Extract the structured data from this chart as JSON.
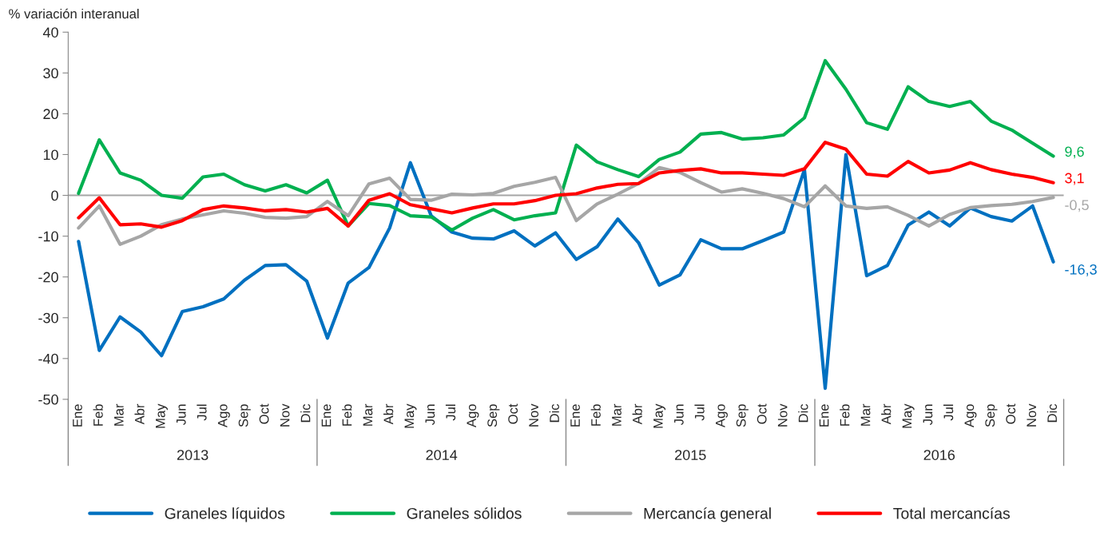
{
  "chart_data": {
    "type": "line",
    "ylabel": "% variación interanual",
    "categories": [
      "Ene",
      "Feb",
      "Mar",
      "Abr",
      "May",
      "Jun",
      "Jul",
      "Ago",
      "Sep",
      "Oct",
      "Nov",
      "Dic",
      "Ene",
      "Feb",
      "Mar",
      "Abr",
      "May",
      "Jun",
      "Jul",
      "Ago",
      "Sep",
      "Oct",
      "Nov",
      "Dic",
      "Ene",
      "Feb",
      "Mar",
      "Abr",
      "May",
      "Jun",
      "Jul",
      "Ago",
      "Sep",
      "Oct",
      "Nov",
      "Dic",
      "Ene",
      "Feb",
      "Mar",
      "Abr",
      "May",
      "Jun",
      "Jul",
      "Ago",
      "Sep",
      "Oct",
      "Nov",
      "Dic"
    ],
    "annotations": [
      "2013",
      "2014",
      "2015",
      "2016"
    ],
    "ylim": [
      -50,
      40
    ],
    "yticks": [
      -50,
      -40,
      -30,
      -20,
      -10,
      0,
      10,
      20,
      30,
      40
    ],
    "grid": false,
    "legend": "bottom",
    "marker": "none",
    "line_style": "solid",
    "ref_lines": [
      {
        "axis": "y",
        "value": 0,
        "color": "#a6a6a6"
      }
    ],
    "series": [
      {
        "name": "Graneles líquidos",
        "color": "#0070c0",
        "values": [
          -11.3,
          -38,
          -29.8,
          -33.5,
          -39.3,
          -28.5,
          -27.3,
          -25.4,
          -20.8,
          -17.2,
          -17,
          -21,
          -35,
          -21.5,
          -17.7,
          -8,
          8,
          -5,
          -9,
          -10.5,
          -10.7,
          -8.7,
          -12.4,
          -9.2,
          -15.7,
          -12.6,
          -5.8,
          -11.6,
          -22,
          -19.5,
          -10.9,
          -13.1,
          -13.1,
          -11.1,
          -9,
          6.3,
          -47.3,
          10,
          -19.7,
          -17.2,
          -7.3,
          -4.1,
          -7.5,
          -3.1,
          -5.2,
          -6.3,
          -2.6,
          -16.3
        ],
        "value_labels": [
          null,
          null,
          null,
          null,
          null,
          null,
          null,
          null,
          null,
          null,
          null,
          null,
          null,
          null,
          null,
          null,
          null,
          null,
          null,
          null,
          null,
          null,
          null,
          null,
          null,
          null,
          null,
          null,
          null,
          null,
          null,
          null,
          null,
          null,
          null,
          null,
          null,
          null,
          null,
          null,
          null,
          null,
          null,
          null,
          null,
          null,
          null,
          "-16,3"
        ]
      },
      {
        "name": "Graneles sólidos",
        "color": "#00b050",
        "values": [
          0.5,
          13.6,
          5.5,
          3.7,
          0,
          -0.7,
          4.5,
          5.2,
          2.6,
          1.1,
          2.6,
          0.6,
          3.7,
          -7.5,
          -2,
          -2.5,
          -5,
          -5.3,
          -8.5,
          -5.6,
          -3.5,
          -6,
          -5,
          -4.3,
          12.3,
          8.2,
          6.3,
          4.6,
          8.8,
          10.6,
          15,
          15.4,
          13.8,
          14.1,
          14.8,
          19,
          33,
          26,
          17.8,
          16.2,
          26.6,
          23,
          21.8,
          23,
          18.2,
          16,
          12.8,
          9.6
        ],
        "value_labels": [
          null,
          null,
          null,
          null,
          null,
          null,
          null,
          null,
          null,
          null,
          null,
          null,
          null,
          null,
          null,
          null,
          null,
          null,
          null,
          null,
          null,
          null,
          null,
          null,
          null,
          null,
          null,
          null,
          null,
          null,
          null,
          null,
          null,
          null,
          null,
          null,
          null,
          null,
          null,
          null,
          null,
          null,
          null,
          null,
          null,
          null,
          null,
          "9,6"
        ]
      },
      {
        "name": "Mercancía general",
        "color": "#a6a6a6",
        "values": [
          -8,
          -2.6,
          -12,
          -10,
          -7.2,
          -5.8,
          -4.8,
          -3.8,
          -4.4,
          -5.4,
          -5.6,
          -5.2,
          -1.5,
          -5,
          2.8,
          4.2,
          -1,
          -1.2,
          0.3,
          0.1,
          0.5,
          2.2,
          3.2,
          4.4,
          -6.2,
          -2.1,
          0.3,
          2.9,
          6.8,
          5.6,
          3.1,
          0.8,
          1.6,
          0.5,
          -0.8,
          -2.8,
          2.3,
          -2.6,
          -3.2,
          -2.8,
          -4.9,
          -7.5,
          -4.7,
          -3,
          -2.5,
          -2.2,
          -1.5,
          -0.5
        ],
        "value_labels": [
          null,
          null,
          null,
          null,
          null,
          null,
          null,
          null,
          null,
          null,
          null,
          null,
          null,
          null,
          null,
          null,
          null,
          null,
          null,
          null,
          null,
          null,
          null,
          null,
          null,
          null,
          null,
          null,
          null,
          null,
          null,
          null,
          null,
          null,
          null,
          null,
          null,
          null,
          null,
          null,
          null,
          null,
          null,
          null,
          null,
          null,
          null,
          "-0,5"
        ]
      },
      {
        "name": "Total mercancías",
        "color": "#ff0000",
        "values": [
          -5.5,
          -0.6,
          -7.2,
          -7,
          -7.8,
          -6.2,
          -3.5,
          -2.6,
          -3.1,
          -3.8,
          -3.5,
          -4.1,
          -3.2,
          -7.5,
          -1.2,
          0.4,
          -2.3,
          -3.3,
          -4.3,
          -3.1,
          -2.1,
          -2.1,
          -1.3,
          0,
          0.4,
          1.8,
          2.7,
          2.9,
          5.5,
          6.1,
          6.5,
          5.5,
          5.5,
          5.2,
          4.9,
          6.5,
          13,
          11.3,
          5.2,
          4.7,
          8.3,
          5.5,
          6.2,
          8,
          6.3,
          5.2,
          4.4,
          3.1
        ],
        "value_labels": [
          null,
          null,
          null,
          null,
          null,
          null,
          null,
          null,
          null,
          null,
          null,
          null,
          null,
          null,
          null,
          null,
          null,
          null,
          null,
          null,
          null,
          null,
          null,
          null,
          null,
          null,
          null,
          null,
          null,
          null,
          null,
          null,
          null,
          null,
          null,
          null,
          null,
          null,
          null,
          null,
          null,
          null,
          null,
          null,
          null,
          null,
          null,
          "3,1"
        ]
      }
    ]
  }
}
